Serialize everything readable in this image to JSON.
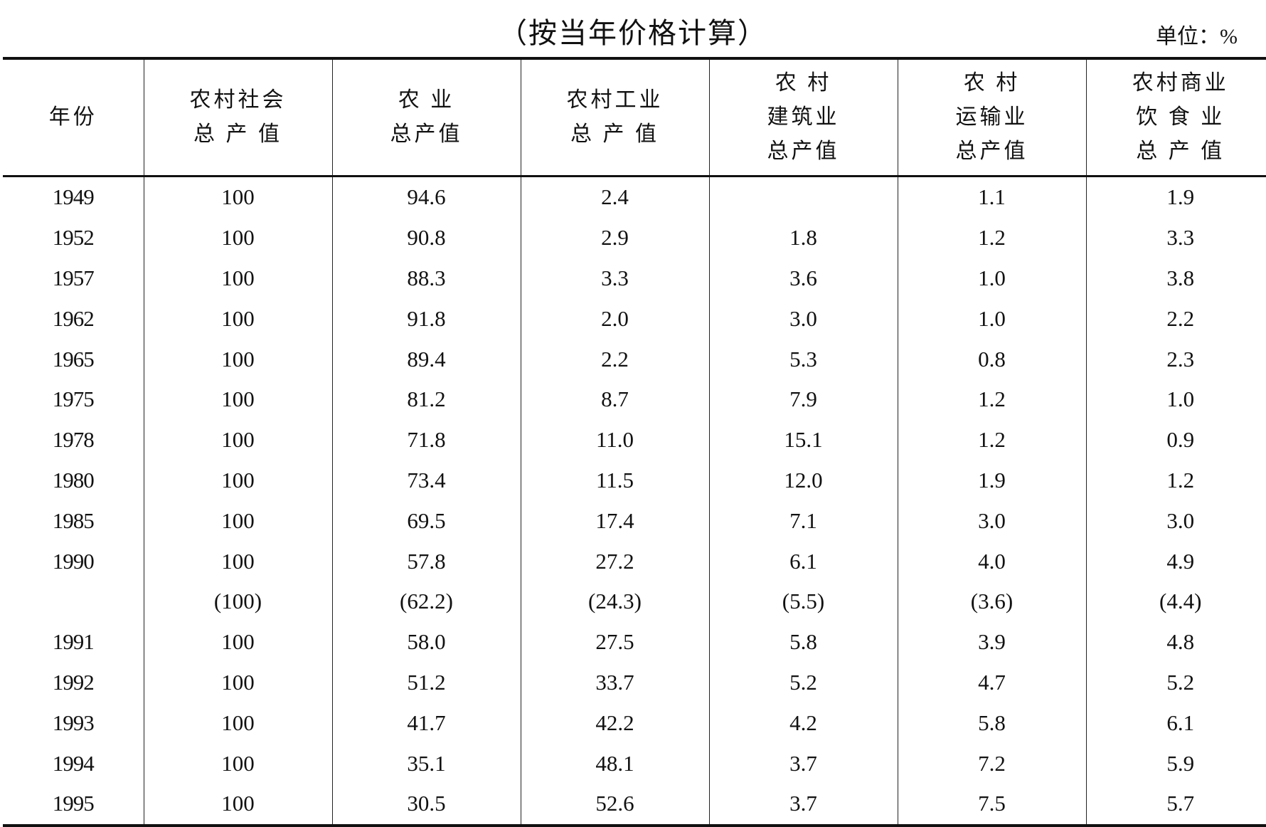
{
  "title": "（按当年价格计算）",
  "unit": "单位：%",
  "headers": [
    [
      "年份"
    ],
    [
      "农村社会",
      "总 产 值"
    ],
    [
      "农  业",
      "总产值"
    ],
    [
      "农村工业",
      "总 产 值"
    ],
    [
      "农  村",
      "建筑业",
      "总产值"
    ],
    [
      "农  村",
      "运输业",
      "总产值"
    ],
    [
      "农村商业",
      "饮 食 业",
      "总 产 值"
    ]
  ],
  "rows": [
    [
      "1949",
      "100",
      "94.6",
      "2.4",
      "",
      "1.1",
      "1.9"
    ],
    [
      "1952",
      "100",
      "90.8",
      "2.9",
      "1.8",
      "1.2",
      "3.3"
    ],
    [
      "1957",
      "100",
      "88.3",
      "3.3",
      "3.6",
      "1.0",
      "3.8"
    ],
    [
      "1962",
      "100",
      "91.8",
      "2.0",
      "3.0",
      "1.0",
      "2.2"
    ],
    [
      "1965",
      "100",
      "89.4",
      "2.2",
      "5.3",
      "0.8",
      "2.3"
    ],
    [
      "1975",
      "100",
      "81.2",
      "8.7",
      "7.9",
      "1.2",
      "1.0"
    ],
    [
      "1978",
      "100",
      "71.8",
      "11.0",
      "15.1",
      "1.2",
      "0.9"
    ],
    [
      "1980",
      "100",
      "73.4",
      "11.5",
      "12.0",
      "1.9",
      "1.2"
    ],
    [
      "1985",
      "100",
      "69.5",
      "17.4",
      "7.1",
      "3.0",
      "3.0"
    ],
    [
      "1990",
      "100",
      "57.8",
      "27.2",
      "6.1",
      "4.0",
      "4.9"
    ],
    [
      "",
      "(100)",
      "(62.2)",
      "(24.3)",
      "(5.5)",
      "(3.6)",
      "(4.4)"
    ],
    [
      "1991",
      "100",
      "58.0",
      "27.5",
      "5.8",
      "3.9",
      "4.8"
    ],
    [
      "1992",
      "100",
      "51.2",
      "33.7",
      "5.2",
      "4.7",
      "5.2"
    ],
    [
      "1993",
      "100",
      "41.7",
      "42.2",
      "4.2",
      "5.8",
      "6.1"
    ],
    [
      "1994",
      "100",
      "35.1",
      "48.1",
      "3.7",
      "7.2",
      "5.9"
    ],
    [
      "1995",
      "100",
      "30.5",
      "52.6",
      "3.7",
      "7.5",
      "5.7"
    ]
  ]
}
